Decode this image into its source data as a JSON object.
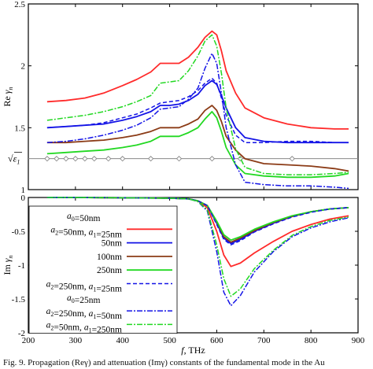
{
  "caption": "Fig. 9. Propagation (Reγ) and attenuation (Imγ) constants of the fundamental mode in the Au",
  "chart_data": [
    {
      "type": "line",
      "panel": "top",
      "ylabel": "Reγn",
      "ylabel_main": "Re",
      "ylabel_greek": "γ",
      "ylabel_sub": "n",
      "xlim": [
        200,
        900
      ],
      "ylim": [
        1,
        2.5
      ],
      "yticks": [
        "1",
        "1.5",
        "2",
        "2.5"
      ],
      "reference_line": {
        "label": "√ε1",
        "value": 1.25,
        "marker_x": [
          240,
          260,
          280,
          300,
          320,
          340,
          370,
          400,
          460,
          520,
          590,
          650,
          760
        ]
      },
      "series": [
        {
          "ref": "s50",
          "color": "#ff2a2a",
          "dash": "solid",
          "x": [
            240,
            280,
            320,
            360,
            400,
            430,
            460,
            480,
            500,
            520,
            540,
            560,
            575,
            590,
            600,
            610,
            620,
            640,
            660,
            700,
            750,
            800,
            850,
            880
          ],
          "y": [
            1.71,
            1.72,
            1.74,
            1.78,
            1.84,
            1.89,
            1.95,
            2.02,
            2.02,
            2.02,
            2.07,
            2.15,
            2.23,
            2.28,
            2.25,
            2.12,
            1.96,
            1.78,
            1.66,
            1.58,
            1.53,
            1.5,
            1.49,
            1.49
          ]
        },
        {
          "ref": "s100",
          "color": "#1414e6",
          "dash": "solid",
          "x": [
            240,
            280,
            320,
            360,
            400,
            430,
            460,
            480,
            500,
            520,
            540,
            560,
            575,
            590,
            600,
            610,
            620,
            640,
            660,
            700,
            750,
            800,
            850,
            880
          ],
          "y": [
            1.5,
            1.51,
            1.52,
            1.53,
            1.56,
            1.59,
            1.63,
            1.68,
            1.68,
            1.69,
            1.72,
            1.77,
            1.84,
            1.88,
            1.85,
            1.76,
            1.66,
            1.5,
            1.42,
            1.39,
            1.38,
            1.38,
            1.38,
            1.38
          ]
        },
        {
          "ref": "s150",
          "color": "#8b3b16",
          "dash": "solid",
          "x": [
            240,
            280,
            320,
            360,
            400,
            430,
            460,
            480,
            500,
            520,
            540,
            560,
            575,
            590,
            600,
            610,
            620,
            640,
            660,
            700,
            750,
            800,
            850,
            880
          ],
          "y": [
            1.38,
            1.38,
            1.39,
            1.4,
            1.42,
            1.44,
            1.47,
            1.5,
            1.5,
            1.5,
            1.53,
            1.57,
            1.64,
            1.68,
            1.64,
            1.55,
            1.43,
            1.32,
            1.25,
            1.21,
            1.2,
            1.19,
            1.17,
            1.15
          ]
        },
        {
          "ref": "s250",
          "color": "#22d822",
          "dash": "solid",
          "x": [
            240,
            280,
            320,
            360,
            400,
            430,
            460,
            480,
            500,
            520,
            540,
            560,
            575,
            590,
            600,
            610,
            620,
            640,
            660,
            700,
            750,
            800,
            850,
            880
          ],
          "y": [
            1.29,
            1.3,
            1.31,
            1.32,
            1.34,
            1.36,
            1.39,
            1.43,
            1.43,
            1.43,
            1.46,
            1.5,
            1.57,
            1.63,
            1.58,
            1.47,
            1.34,
            1.2,
            1.13,
            1.11,
            1.1,
            1.1,
            1.11,
            1.13
          ]
        },
        {
          "ref": "d250_25",
          "color": "#1414e6",
          "dash": "dashed",
          "x": [
            240,
            280,
            320,
            360,
            400,
            430,
            460,
            480,
            500,
            520,
            540,
            560,
            575,
            590,
            600,
            610,
            620,
            640,
            660,
            700,
            750,
            800,
            850,
            880
          ],
          "y": [
            1.5,
            1.51,
            1.52,
            1.54,
            1.58,
            1.61,
            1.66,
            1.7,
            1.71,
            1.72,
            1.75,
            1.8,
            1.86,
            1.9,
            1.86,
            1.74,
            1.6,
            1.44,
            1.38,
            1.38,
            1.39,
            1.39,
            1.38,
            1.38
          ]
        },
        {
          "ref": "d250_50",
          "color": "#1414e6",
          "dash": "dashdot",
          "x": [
            240,
            280,
            320,
            360,
            400,
            430,
            460,
            480,
            500,
            520,
            540,
            560,
            575,
            590,
            600,
            610,
            620,
            640,
            660,
            700,
            750,
            800,
            850,
            880
          ],
          "y": [
            1.38,
            1.39,
            1.41,
            1.44,
            1.48,
            1.52,
            1.58,
            1.65,
            1.66,
            1.67,
            1.73,
            1.82,
            1.98,
            2.1,
            2.02,
            1.78,
            1.5,
            1.2,
            1.06,
            1.04,
            1.03,
            1.03,
            1.02,
            1.01
          ]
        },
        {
          "ref": "d50_250",
          "color": "#22d822",
          "dash": "dashdot",
          "x": [
            240,
            280,
            320,
            360,
            400,
            430,
            460,
            480,
            500,
            520,
            540,
            560,
            575,
            590,
            600,
            610,
            620,
            640,
            660,
            700,
            750,
            800,
            850,
            880
          ],
          "y": [
            1.56,
            1.58,
            1.6,
            1.63,
            1.67,
            1.71,
            1.76,
            1.86,
            1.87,
            1.88,
            1.96,
            2.08,
            2.2,
            2.25,
            2.16,
            1.94,
            1.66,
            1.33,
            1.18,
            1.13,
            1.12,
            1.12,
            1.13,
            1.14
          ]
        }
      ]
    },
    {
      "type": "line",
      "panel": "bottom",
      "ylabel": "Imγn",
      "ylabel_main": "Im",
      "ylabel_greek": "γ",
      "ylabel_sub": "n",
      "xlabel": "f, THz",
      "xlabel_var": "f",
      "xlabel_unit": ", THz",
      "xlim": [
        200,
        900
      ],
      "ylim": [
        -2,
        0
      ],
      "xticks": [
        "200",
        "300",
        "400",
        "500",
        "600",
        "700",
        "800",
        "900"
      ],
      "yticks": [
        "-2",
        "-1.5",
        "-1",
        "-0.5",
        "0"
      ],
      "series": [
        {
          "ref": "s50",
          "color": "#ff2a2a",
          "dash": "solid",
          "x": [
            240,
            300,
            400,
            500,
            540,
            560,
            580,
            600,
            615,
            630,
            650,
            680,
            720,
            760,
            800,
            840,
            880
          ],
          "y": [
            0,
            0,
            -0.005,
            -0.01,
            -0.02,
            -0.05,
            -0.15,
            -0.5,
            -0.85,
            -1.02,
            -0.97,
            -0.82,
            -0.65,
            -0.5,
            -0.4,
            -0.32,
            -0.27
          ]
        },
        {
          "ref": "s100",
          "color": "#1414e6",
          "dash": "solid",
          "x": [
            240,
            300,
            400,
            500,
            540,
            560,
            580,
            600,
            615,
            630,
            650,
            680,
            720,
            760,
            800,
            840,
            880
          ],
          "y": [
            0,
            0,
            -0.005,
            -0.01,
            -0.02,
            -0.05,
            -0.12,
            -0.38,
            -0.6,
            -0.68,
            -0.62,
            -0.5,
            -0.38,
            -0.28,
            -0.21,
            -0.17,
            -0.15
          ]
        },
        {
          "ref": "s150",
          "color": "#8b3b16",
          "dash": "solid",
          "x": [
            240,
            300,
            400,
            500,
            540,
            560,
            580,
            600,
            615,
            630,
            650,
            680,
            720,
            760,
            800,
            840,
            880
          ],
          "y": [
            0,
            0,
            -0.005,
            -0.01,
            -0.02,
            -0.05,
            -0.12,
            -0.36,
            -0.58,
            -0.66,
            -0.6,
            -0.49,
            -0.37,
            -0.28,
            -0.21,
            -0.17,
            -0.15
          ]
        },
        {
          "ref": "s250",
          "color": "#22d822",
          "dash": "solid",
          "x": [
            240,
            300,
            400,
            500,
            540,
            560,
            580,
            600,
            615,
            630,
            650,
            680,
            720,
            760,
            800,
            840,
            880
          ],
          "y": [
            0,
            0,
            -0.005,
            -0.01,
            -0.02,
            -0.05,
            -0.12,
            -0.35,
            -0.55,
            -0.63,
            -0.58,
            -0.47,
            -0.36,
            -0.27,
            -0.21,
            -0.17,
            -0.15
          ]
        },
        {
          "ref": "d250_25",
          "color": "#1414e6",
          "dash": "dashed",
          "x": [
            240,
            300,
            400,
            500,
            540,
            560,
            580,
            600,
            615,
            630,
            650,
            680,
            720,
            760,
            800,
            840,
            880
          ],
          "y": [
            0,
            0,
            -0.005,
            -0.01,
            -0.02,
            -0.05,
            -0.12,
            -0.4,
            -0.62,
            -0.7,
            -0.64,
            -0.51,
            -0.39,
            -0.29,
            -0.22,
            -0.17,
            -0.15
          ]
        },
        {
          "ref": "d250_50",
          "color": "#1414e6",
          "dash": "dashdot",
          "x": [
            240,
            300,
            400,
            500,
            540,
            560,
            580,
            600,
            615,
            630,
            650,
            680,
            720,
            760,
            800,
            840,
            880
          ],
          "y": [
            0,
            0,
            -0.005,
            -0.01,
            -0.02,
            -0.06,
            -0.2,
            -0.8,
            -1.4,
            -1.6,
            -1.45,
            -1.1,
            -0.8,
            -0.58,
            -0.45,
            -0.36,
            -0.3
          ]
        },
        {
          "ref": "d50_250",
          "color": "#22d822",
          "dash": "dashdot",
          "x": [
            240,
            300,
            400,
            500,
            540,
            560,
            580,
            600,
            615,
            630,
            650,
            680,
            720,
            760,
            800,
            840,
            880
          ],
          "y": [
            0,
            0,
            -0.005,
            -0.01,
            -0.02,
            -0.06,
            -0.18,
            -0.7,
            -1.2,
            -1.46,
            -1.35,
            -1.05,
            -0.78,
            -0.56,
            -0.43,
            -0.34,
            -0.29
          ]
        }
      ]
    }
  ],
  "legend": {
    "placement": "bottom-left",
    "entries": [
      {
        "ref": "h_a0_50",
        "kind": "heading",
        "parts": [
          [
            "i",
            "a"
          ],
          [
            "sub",
            "0"
          ],
          [
            "t",
            "=50nm"
          ]
        ]
      },
      {
        "ref": "s50",
        "kind": "series",
        "color": "#ff2a2a",
        "dash": "solid",
        "parts": [
          [
            "i",
            "a"
          ],
          [
            "sub",
            "2"
          ],
          [
            "t",
            "=50nm, "
          ],
          [
            "i",
            "a"
          ],
          [
            "sub",
            "1"
          ],
          [
            "t",
            "=25nm"
          ]
        ]
      },
      {
        "ref": "s100",
        "kind": "series",
        "color": "#1414e6",
        "dash": "solid",
        "parts": [
          [
            "t",
            "50nm"
          ]
        ]
      },
      {
        "ref": "s150",
        "kind": "series",
        "color": "#8b3b16",
        "dash": "solid",
        "parts": [
          [
            "t",
            "100nm"
          ]
        ]
      },
      {
        "ref": "s250",
        "kind": "series",
        "color": "#22d822",
        "dash": "solid",
        "parts": [
          [
            "t",
            "250nm"
          ]
        ]
      },
      {
        "ref": "d250_25",
        "kind": "series",
        "color": "#1414e6",
        "dash": "dashed",
        "parts": [
          [
            "i",
            "a"
          ],
          [
            "sub",
            "2"
          ],
          [
            "t",
            "=250nm, "
          ],
          [
            "i",
            "a"
          ],
          [
            "sub",
            "1"
          ],
          [
            "t",
            "=25nm"
          ]
        ]
      },
      {
        "ref": "h_a0_25",
        "kind": "heading",
        "parts": [
          [
            "i",
            "a"
          ],
          [
            "sub",
            "0"
          ],
          [
            "t",
            "=25nm"
          ]
        ]
      },
      {
        "ref": "d250_50",
        "kind": "series",
        "color": "#1414e6",
        "dash": "dashdot",
        "parts": [
          [
            "i",
            "a"
          ],
          [
            "sub",
            "2"
          ],
          [
            "t",
            "=250nm, "
          ],
          [
            "i",
            "a"
          ],
          [
            "sub",
            "1"
          ],
          [
            "t",
            "=50nm"
          ]
        ]
      },
      {
        "ref": "d50_250",
        "kind": "series",
        "color": "#22d822",
        "dash": "dashdot",
        "parts": [
          [
            "i",
            "a"
          ],
          [
            "sub",
            "2"
          ],
          [
            "t",
            "=50nm, "
          ],
          [
            "i",
            "a"
          ],
          [
            "sub",
            "1"
          ],
          [
            "t",
            "=250nm"
          ]
        ]
      }
    ]
  }
}
